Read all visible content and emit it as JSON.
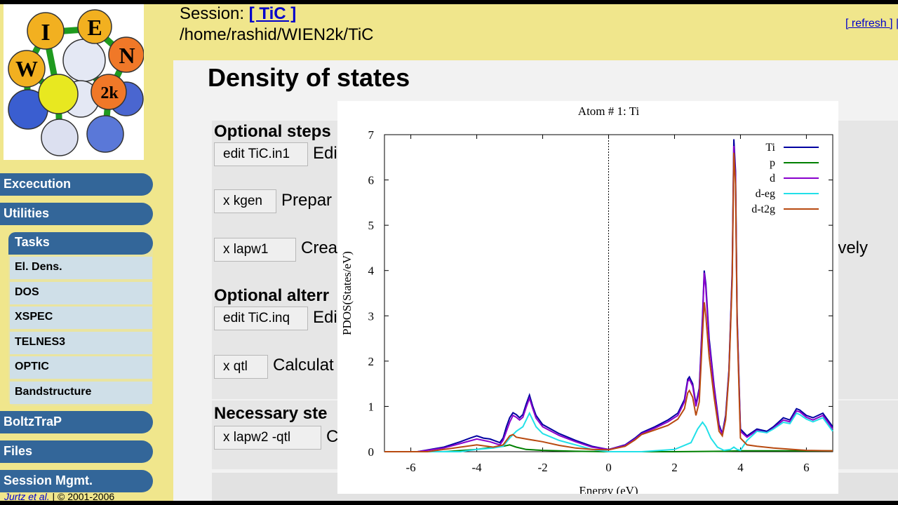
{
  "sidebar": {
    "logo_letters": [
      "W",
      "I",
      "E",
      "N",
      "2k"
    ],
    "nav": [
      "Excecution",
      "Utilities",
      "BoltzTraP",
      "Files",
      "Session Mgmt."
    ],
    "tasks_label": "Tasks",
    "tasks": [
      "El. Dens.",
      "DOS",
      "XSPEC",
      "TELNES3",
      "OPTIC",
      "Bandstructure"
    ],
    "copyright_author": "Jurtz et al.",
    "copyright_text": "| © 2001-2006"
  },
  "header": {
    "session_label": "Session:",
    "session_name": "[ TiC ]",
    "path": "/home/rashid/WIEN2k/TiC",
    "refresh": "[ refresh ]",
    "refresh_sep": "|"
  },
  "main": {
    "title": "Density of states",
    "sections": [
      {
        "title": "Optional steps",
        "rows": [
          {
            "button": "edit TiC.in1",
            "text": "Edi"
          },
          {
            "button": "x kgen",
            "text": "Prepar"
          },
          {
            "button": "x lapw1",
            "text": "Crea",
            "trailing": "ively"
          }
        ]
      },
      {
        "title": "Optional alterr",
        "rows": [
          {
            "button": "edit TiC.inq",
            "text": "Edi"
          },
          {
            "button": "x qtl",
            "text": "Calculat"
          }
        ]
      },
      {
        "title": "Necessary ste",
        "rows": [
          {
            "button": "x lapw2 -qtl",
            "text": "C"
          }
        ]
      }
    ]
  },
  "chart_data": {
    "type": "line",
    "title": "Atom # 1: Ti",
    "xlabel": "Energy (eV)",
    "ylabel": "PDOS(States/eV)",
    "xlim": [
      -6.8,
      6.8
    ],
    "ylim": [
      0,
      7
    ],
    "xticks": [
      -6,
      -4,
      -2,
      0,
      2,
      4,
      6
    ],
    "yticks": [
      0,
      1,
      2,
      3,
      4,
      5,
      6,
      7
    ],
    "fermi_line_x": 0,
    "legend_position": "top-right",
    "series": [
      {
        "name": "Ti",
        "color": "#0000a0",
        "points": [
          [
            -6.8,
            0
          ],
          [
            -5.8,
            0
          ],
          [
            -5,
            0.1
          ],
          [
            -4.5,
            0.22
          ],
          [
            -4.2,
            0.3
          ],
          [
            -4,
            0.35
          ],
          [
            -3.8,
            0.3
          ],
          [
            -3.6,
            0.28
          ],
          [
            -3.3,
            0.2
          ],
          [
            -3.2,
            0.3
          ],
          [
            -3.1,
            0.55
          ],
          [
            -3,
            0.75
          ],
          [
            -2.9,
            0.86
          ],
          [
            -2.8,
            0.82
          ],
          [
            -2.7,
            0.75
          ],
          [
            -2.6,
            0.82
          ],
          [
            -2.5,
            1.05
          ],
          [
            -2.4,
            1.25
          ],
          [
            -2.3,
            1.0
          ],
          [
            -2.2,
            0.8
          ],
          [
            -2,
            0.6
          ],
          [
            -1.5,
            0.4
          ],
          [
            -1,
            0.25
          ],
          [
            -0.5,
            0.12
          ],
          [
            0,
            0.05
          ],
          [
            0.5,
            0.15
          ],
          [
            0.8,
            0.3
          ],
          [
            1,
            0.42
          ],
          [
            1.4,
            0.55
          ],
          [
            1.8,
            0.7
          ],
          [
            2.1,
            0.85
          ],
          [
            2.3,
            1.15
          ],
          [
            2.4,
            1.6
          ],
          [
            2.45,
            1.65
          ],
          [
            2.55,
            1.5
          ],
          [
            2.65,
            1.05
          ],
          [
            2.75,
            1.4
          ],
          [
            2.85,
            3.0
          ],
          [
            2.9,
            4.0
          ],
          [
            2.95,
            3.7
          ],
          [
            3.05,
            2.5
          ],
          [
            3.2,
            1.45
          ],
          [
            3.35,
            0.6
          ],
          [
            3.45,
            0.4
          ],
          [
            3.55,
            0.8
          ],
          [
            3.65,
            1.8
          ],
          [
            3.75,
            4.0
          ],
          [
            3.8,
            6.9
          ],
          [
            3.85,
            6.2
          ],
          [
            3.9,
            3.0
          ],
          [
            4,
            0.5
          ],
          [
            4.2,
            0.35
          ],
          [
            4.5,
            0.5
          ],
          [
            4.8,
            0.45
          ],
          [
            5,
            0.55
          ],
          [
            5.3,
            0.75
          ],
          [
            5.5,
            0.7
          ],
          [
            5.7,
            0.95
          ],
          [
            5.8,
            0.92
          ],
          [
            6,
            0.8
          ],
          [
            6.2,
            0.75
          ],
          [
            6.5,
            0.85
          ],
          [
            6.8,
            0.55
          ]
        ]
      },
      {
        "name": "p",
        "color": "#008000",
        "points": [
          [
            -6.8,
            0
          ],
          [
            -5,
            0
          ],
          [
            -4,
            0.05
          ],
          [
            -3.5,
            0.1
          ],
          [
            -3.2,
            0.12
          ],
          [
            -3,
            0.15
          ],
          [
            -2.8,
            0.1
          ],
          [
            -2.5,
            0.05
          ],
          [
            -2,
            0.03
          ],
          [
            -1,
            0.01
          ],
          [
            0,
            0
          ],
          [
            2,
            0
          ],
          [
            3.5,
            0.01
          ],
          [
            4,
            0.02
          ],
          [
            6.8,
            0.02
          ]
        ]
      },
      {
        "name": "d",
        "color": "#8800cc",
        "points": [
          [
            -6.8,
            0
          ],
          [
            -5.8,
            0
          ],
          [
            -5,
            0.08
          ],
          [
            -4.5,
            0.18
          ],
          [
            -4.2,
            0.24
          ],
          [
            -4,
            0.28
          ],
          [
            -3.8,
            0.25
          ],
          [
            -3.6,
            0.22
          ],
          [
            -3.3,
            0.15
          ],
          [
            -3.2,
            0.25
          ],
          [
            -3.1,
            0.45
          ],
          [
            -3,
            0.65
          ],
          [
            -2.9,
            0.8
          ],
          [
            -2.8,
            0.76
          ],
          [
            -2.7,
            0.7
          ],
          [
            -2.6,
            0.76
          ],
          [
            -2.5,
            0.98
          ],
          [
            -2.4,
            1.18
          ],
          [
            -2.3,
            0.95
          ],
          [
            -2.2,
            0.74
          ],
          [
            -2,
            0.55
          ],
          [
            -1.5,
            0.36
          ],
          [
            -1,
            0.22
          ],
          [
            -0.5,
            0.1
          ],
          [
            0,
            0.05
          ],
          [
            0.5,
            0.14
          ],
          [
            0.8,
            0.28
          ],
          [
            1,
            0.4
          ],
          [
            1.4,
            0.52
          ],
          [
            1.8,
            0.66
          ],
          [
            2.1,
            0.8
          ],
          [
            2.3,
            1.1
          ],
          [
            2.4,
            1.55
          ],
          [
            2.45,
            1.6
          ],
          [
            2.55,
            1.45
          ],
          [
            2.65,
            1.0
          ],
          [
            2.75,
            1.35
          ],
          [
            2.85,
            2.9
          ],
          [
            2.9,
            3.95
          ],
          [
            2.95,
            3.6
          ],
          [
            3.05,
            2.4
          ],
          [
            3.2,
            1.4
          ],
          [
            3.35,
            0.55
          ],
          [
            3.45,
            0.38
          ],
          [
            3.55,
            0.75
          ],
          [
            3.65,
            1.75
          ],
          [
            3.75,
            3.9
          ],
          [
            3.8,
            6.75
          ],
          [
            3.85,
            6.05
          ],
          [
            3.9,
            2.9
          ],
          [
            4,
            0.45
          ],
          [
            4.2,
            0.32
          ],
          [
            4.5,
            0.47
          ],
          [
            4.8,
            0.42
          ],
          [
            5,
            0.52
          ],
          [
            5.3,
            0.7
          ],
          [
            5.5,
            0.66
          ],
          [
            5.7,
            0.9
          ],
          [
            5.8,
            0.88
          ],
          [
            6,
            0.76
          ],
          [
            6.2,
            0.7
          ],
          [
            6.5,
            0.8
          ],
          [
            6.8,
            0.5
          ]
        ]
      },
      {
        "name": "d-eg",
        "color": "#22e0e8",
        "points": [
          [
            -6.8,
            0
          ],
          [
            -4.5,
            0
          ],
          [
            -4,
            0.05
          ],
          [
            -3.5,
            0.08
          ],
          [
            -3.2,
            0.12
          ],
          [
            -3,
            0.3
          ],
          [
            -2.8,
            0.45
          ],
          [
            -2.6,
            0.55
          ],
          [
            -2.5,
            0.7
          ],
          [
            -2.4,
            0.85
          ],
          [
            -2.3,
            0.7
          ],
          [
            -2.2,
            0.55
          ],
          [
            -2,
            0.4
          ],
          [
            -1.5,
            0.25
          ],
          [
            -1,
            0.15
          ],
          [
            -0.5,
            0.05
          ],
          [
            0,
            0
          ],
          [
            1,
            0
          ],
          [
            2,
            0.05
          ],
          [
            2.5,
            0.2
          ],
          [
            2.7,
            0.5
          ],
          [
            2.85,
            0.65
          ],
          [
            2.95,
            0.55
          ],
          [
            3.1,
            0.3
          ],
          [
            3.3,
            0.1
          ],
          [
            3.5,
            0.03
          ],
          [
            3.7,
            0.05
          ],
          [
            3.8,
            0.1
          ],
          [
            3.9,
            0.05
          ],
          [
            4,
            0.03
          ],
          [
            4.2,
            0.25
          ],
          [
            4.5,
            0.45
          ],
          [
            4.8,
            0.42
          ],
          [
            5,
            0.5
          ],
          [
            5.3,
            0.65
          ],
          [
            5.5,
            0.62
          ],
          [
            5.7,
            0.85
          ],
          [
            5.8,
            0.82
          ],
          [
            6,
            0.72
          ],
          [
            6.2,
            0.66
          ],
          [
            6.5,
            0.75
          ],
          [
            6.8,
            0.45
          ]
        ]
      },
      {
        "name": "d-t2g",
        "color": "#b84a10",
        "points": [
          [
            -6.8,
            0
          ],
          [
            -5.5,
            0
          ],
          [
            -5,
            0.05
          ],
          [
            -4.5,
            0.1
          ],
          [
            -4,
            0.15
          ],
          [
            -3.5,
            0.1
          ],
          [
            -3.2,
            0.15
          ],
          [
            -3,
            0.35
          ],
          [
            -2.9,
            0.38
          ],
          [
            -2.8,
            0.32
          ],
          [
            -2.5,
            0.28
          ],
          [
            -2,
            0.22
          ],
          [
            -1.5,
            0.14
          ],
          [
            -1,
            0.08
          ],
          [
            -0.5,
            0.05
          ],
          [
            0,
            0.04
          ],
          [
            0.5,
            0.12
          ],
          [
            0.8,
            0.26
          ],
          [
            1,
            0.38
          ],
          [
            1.4,
            0.48
          ],
          [
            1.8,
            0.58
          ],
          [
            2.1,
            0.72
          ],
          [
            2.3,
            0.95
          ],
          [
            2.4,
            1.3
          ],
          [
            2.45,
            1.35
          ],
          [
            2.55,
            1.2
          ],
          [
            2.65,
            0.8
          ],
          [
            2.75,
            1.1
          ],
          [
            2.85,
            2.6
          ],
          [
            2.9,
            3.3
          ],
          [
            2.95,
            3.0
          ],
          [
            3.05,
            2.1
          ],
          [
            3.2,
            1.2
          ],
          [
            3.35,
            0.45
          ],
          [
            3.45,
            0.35
          ],
          [
            3.55,
            0.7
          ],
          [
            3.65,
            1.7
          ],
          [
            3.75,
            3.8
          ],
          [
            3.8,
            6.6
          ],
          [
            3.85,
            5.9
          ],
          [
            3.9,
            2.8
          ],
          [
            4,
            0.3
          ],
          [
            4.2,
            0.15
          ],
          [
            4.5,
            0.12
          ],
          [
            5,
            0.08
          ],
          [
            6,
            0.03
          ],
          [
            6.8,
            0.02
          ]
        ]
      }
    ]
  }
}
